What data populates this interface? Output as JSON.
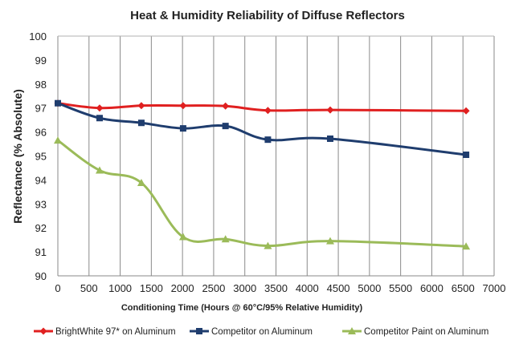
{
  "chart_data": {
    "type": "line",
    "title": "Heat & Humidity Reliability of Diffuse Reflectors",
    "xlabel": "Conditioning Time (Hours @ 60°C/95% Relative Humidity)",
    "ylabel": "Reflectance (% Absolute)",
    "xlim": [
      0,
      7000
    ],
    "ylim": [
      90,
      100
    ],
    "xticks": [
      "0",
      "500",
      "1000",
      "1500",
      "2000",
      "2500",
      "3000",
      "3500",
      "4000",
      "4500",
      "5000",
      "5500",
      "6000",
      "6500",
      "7000"
    ],
    "yticks": [
      "90",
      "91",
      "92",
      "93",
      "94",
      "95",
      "96",
      "97",
      "98",
      "99",
      "100"
    ],
    "grid": "vertical",
    "legend_position": "bottom",
    "series": [
      {
        "name": "BrightWhite 97* on Aluminum",
        "color": "#e02020",
        "marker": "diamond",
        "points": [
          [
            0,
            97.2
          ],
          [
            670,
            97.0
          ],
          [
            1340,
            97.1
          ],
          [
            2010,
            97.1
          ],
          [
            2690,
            97.08
          ],
          [
            3370,
            96.9
          ],
          [
            4370,
            96.92
          ],
          [
            6550,
            96.88
          ]
        ]
      },
      {
        "name": "Competitor  on Aluminum",
        "color": "#1f3d6e",
        "marker": "square",
        "points": [
          [
            0,
            97.2
          ],
          [
            670,
            96.58
          ],
          [
            1340,
            96.38
          ],
          [
            2010,
            96.15
          ],
          [
            2690,
            96.25
          ],
          [
            3370,
            95.68
          ],
          [
            4370,
            95.72
          ],
          [
            6550,
            95.05
          ]
        ]
      },
      {
        "name": "Competitor Paint on Aluminum",
        "color": "#9bbb59",
        "marker": "triangle",
        "points": [
          [
            0,
            95.65
          ],
          [
            670,
            94.4
          ],
          [
            1340,
            93.88
          ],
          [
            2010,
            91.62
          ],
          [
            2690,
            91.53
          ],
          [
            3370,
            91.25
          ],
          [
            4370,
            91.45
          ],
          [
            6550,
            91.23
          ]
        ]
      }
    ]
  }
}
